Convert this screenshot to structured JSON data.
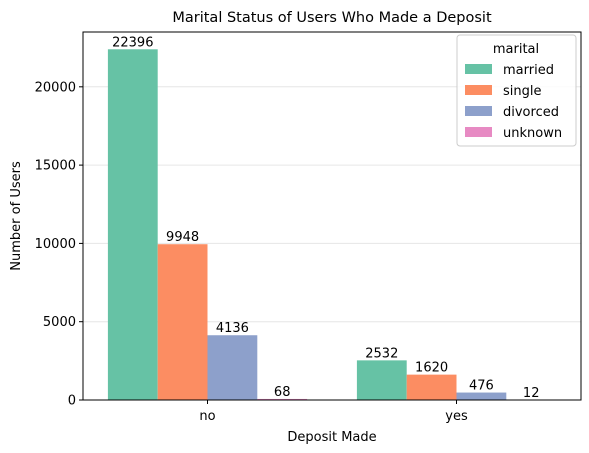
{
  "chart_data": {
    "type": "bar",
    "title": "Marital Status of Users Who Made a Deposit",
    "xlabel": "Deposit Made",
    "ylabel": "Number of Users",
    "categories": [
      "no",
      "yes"
    ],
    "ylim": [
      0,
      23500
    ],
    "yticks": [
      0,
      5000,
      10000,
      15000,
      20000
    ],
    "ytick_labels": [
      "0",
      "5000",
      "10000",
      "15000",
      "20000"
    ],
    "grid": "horizontal",
    "legend": {
      "title": "marital",
      "placement": "top-right"
    },
    "series": [
      {
        "name": "married",
        "color": "#66c2a5",
        "values": [
          22396,
          2532
        ]
      },
      {
        "name": "single",
        "color": "#fc8d62",
        "values": [
          9948,
          1620
        ]
      },
      {
        "name": "divorced",
        "color": "#8da0cb",
        "values": [
          4136,
          476
        ]
      },
      {
        "name": "unknown",
        "color": "#e78ac3",
        "values": [
          68,
          12
        ]
      }
    ],
    "data_labels": [
      [
        "22396",
        "2532"
      ],
      [
        "9948",
        "1620"
      ],
      [
        "4136",
        "476"
      ],
      [
        "68",
        "12"
      ]
    ]
  }
}
